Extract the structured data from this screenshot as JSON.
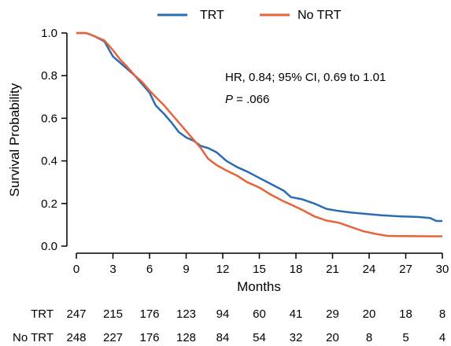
{
  "chart_data": {
    "type": "line",
    "xlabel": "Months",
    "ylabel": "Survival Probability",
    "xlim": [
      0,
      30
    ],
    "ylim": [
      0,
      1.0
    ],
    "x_ticks": [
      0,
      3,
      6,
      9,
      12,
      15,
      18,
      21,
      24,
      27,
      30
    ],
    "y_ticks": [
      "0.0",
      "0.2",
      "0.4",
      "0.6",
      "0.8",
      "1.0"
    ],
    "grid": false,
    "legend_position": "top",
    "annotation": {
      "hr_text": "HR, 0.84; 95% CI, 0.69 to 1.01",
      "p_label": "P",
      "p_value": " = .066"
    },
    "series": [
      {
        "name": "TRT",
        "color": "#2B6CB0",
        "points": [
          [
            0,
            1.0
          ],
          [
            0.8,
            1.0
          ],
          [
            1.5,
            0.985
          ],
          [
            2.3,
            0.96
          ],
          [
            3.0,
            0.89
          ],
          [
            3.6,
            0.86
          ],
          [
            4.2,
            0.83
          ],
          [
            4.8,
            0.8
          ],
          [
            5.4,
            0.76
          ],
          [
            6.0,
            0.72
          ],
          [
            6.5,
            0.66
          ],
          [
            7.2,
            0.62
          ],
          [
            7.8,
            0.58
          ],
          [
            8.4,
            0.535
          ],
          [
            9.0,
            0.51
          ],
          [
            9.6,
            0.495
          ],
          [
            10.2,
            0.47
          ],
          [
            10.8,
            0.46
          ],
          [
            11.5,
            0.44
          ],
          [
            12.3,
            0.4
          ],
          [
            13.2,
            0.37
          ],
          [
            14.0,
            0.35
          ],
          [
            15.0,
            0.32
          ],
          [
            16.0,
            0.29
          ],
          [
            17.0,
            0.26
          ],
          [
            17.6,
            0.23
          ],
          [
            18.5,
            0.22
          ],
          [
            19.5,
            0.2
          ],
          [
            20.5,
            0.175
          ],
          [
            21.5,
            0.165
          ],
          [
            22.5,
            0.158
          ],
          [
            24.0,
            0.15
          ],
          [
            25.0,
            0.145
          ],
          [
            26.5,
            0.14
          ],
          [
            28.0,
            0.137
          ],
          [
            29.0,
            0.132
          ],
          [
            29.5,
            0.118
          ],
          [
            30.0,
            0.118
          ]
        ]
      },
      {
        "name": "No TRT",
        "color": "#E8633A",
        "points": [
          [
            0,
            1.0
          ],
          [
            0.8,
            1.0
          ],
          [
            1.5,
            0.985
          ],
          [
            2.3,
            0.965
          ],
          [
            3.0,
            0.92
          ],
          [
            3.6,
            0.875
          ],
          [
            4.2,
            0.84
          ],
          [
            4.8,
            0.8
          ],
          [
            5.4,
            0.77
          ],
          [
            6.0,
            0.73
          ],
          [
            6.5,
            0.7
          ],
          [
            7.2,
            0.66
          ],
          [
            7.8,
            0.62
          ],
          [
            8.4,
            0.58
          ],
          [
            9.0,
            0.54
          ],
          [
            9.6,
            0.5
          ],
          [
            10.2,
            0.46
          ],
          [
            10.8,
            0.41
          ],
          [
            11.5,
            0.38
          ],
          [
            12.3,
            0.355
          ],
          [
            13.2,
            0.33
          ],
          [
            14.0,
            0.3
          ],
          [
            15.0,
            0.275
          ],
          [
            16.0,
            0.24
          ],
          [
            17.0,
            0.21
          ],
          [
            17.6,
            0.195
          ],
          [
            18.5,
            0.17
          ],
          [
            19.5,
            0.14
          ],
          [
            20.5,
            0.12
          ],
          [
            21.5,
            0.11
          ],
          [
            22.5,
            0.09
          ],
          [
            23.5,
            0.07
          ],
          [
            24.5,
            0.058
          ],
          [
            25.5,
            0.048
          ],
          [
            27.0,
            0.047
          ],
          [
            29.0,
            0.046
          ],
          [
            30.0,
            0.046
          ]
        ]
      }
    ]
  },
  "risk_table": {
    "x_positions": [
      0,
      3,
      6,
      9,
      12,
      15,
      18,
      21,
      24,
      27,
      30
    ],
    "rows": [
      {
        "label": "TRT",
        "values": [
          "247",
          "215",
          "176",
          "123",
          "94",
          "60",
          "41",
          "29",
          "20",
          "18",
          "8"
        ]
      },
      {
        "label": "No TRT",
        "values": [
          "248",
          "227",
          "176",
          "128",
          "84",
          "54",
          "32",
          "20",
          "8",
          "5",
          "4"
        ]
      }
    ]
  }
}
